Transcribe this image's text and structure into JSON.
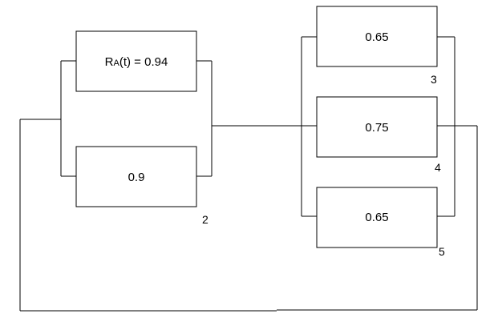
{
  "blocks": [
    {
      "id": "A",
      "prefix": "R",
      "subscript": "A",
      "suffix": "(t) = 0.94"
    },
    {
      "id": "2",
      "value": "0.9",
      "number": "2"
    },
    {
      "id": "3",
      "value": "0.65",
      "number": "3"
    },
    {
      "id": "4",
      "value": "0.75",
      "number": "4"
    },
    {
      "id": "5",
      "value": "0.65",
      "number": "5"
    }
  ]
}
